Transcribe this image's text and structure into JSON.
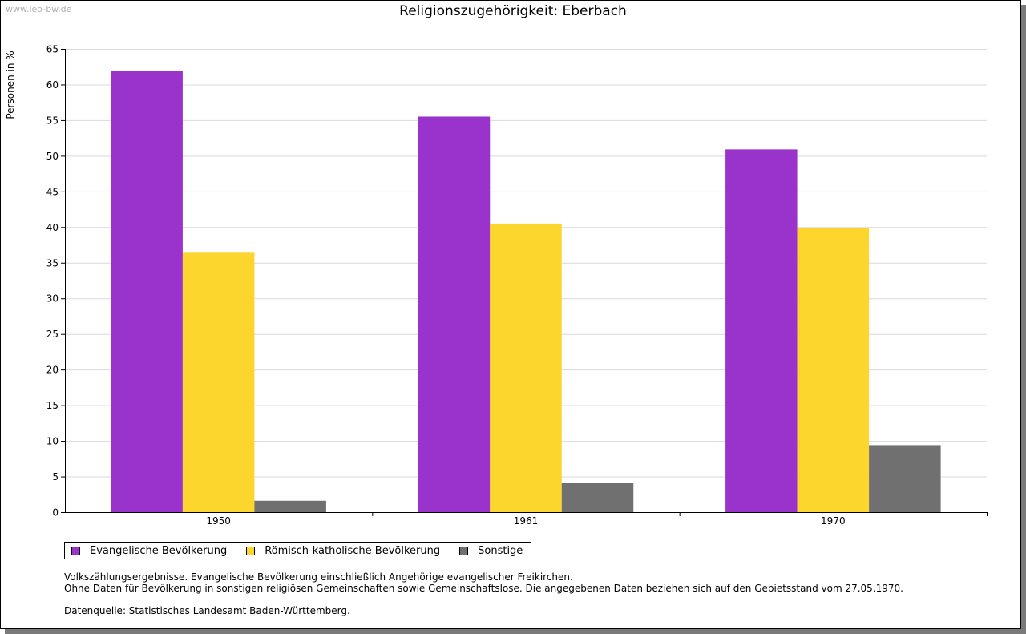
{
  "watermark": "www.leo-bw.de",
  "chart_data": {
    "type": "bar",
    "title": "Religionszugehörigkeit: Eberbach",
    "xlabel": "",
    "ylabel": "Personen in %",
    "ylim": [
      0,
      65
    ],
    "yticks": [
      0,
      5,
      10,
      15,
      20,
      25,
      30,
      35,
      40,
      45,
      50,
      55,
      60,
      65
    ],
    "categories": [
      "1950",
      "1961",
      "1970"
    ],
    "grid": true,
    "legend_position": "bottom-left",
    "series": [
      {
        "name": "Evangelische Bevölkerung",
        "color": "#9933cc",
        "values": [
          61.9,
          55.5,
          50.9
        ]
      },
      {
        "name": "Römisch-katholische Bevölkerung",
        "color": "#fcd52d",
        "values": [
          36.4,
          40.5,
          39.9
        ]
      },
      {
        "name": "Sonstige",
        "color": "#707070",
        "values": [
          1.6,
          4.1,
          9.4
        ]
      }
    ]
  },
  "notes": {
    "line1": "Volkszählungsergebnisse. Evangelische Bevölkerung einschließlich Angehörige evangelischer Freikirchen.",
    "line2": "Ohne Daten für Bevölkerung in sonstigen religiösen Gemeinschaften sowie Gemeinschaftslose. Die angegebenen Daten beziehen sich auf den Gebietsstand vom 27.05.1970.",
    "source": "Datenquelle: Statistisches Landesamt Baden-Württemberg."
  }
}
